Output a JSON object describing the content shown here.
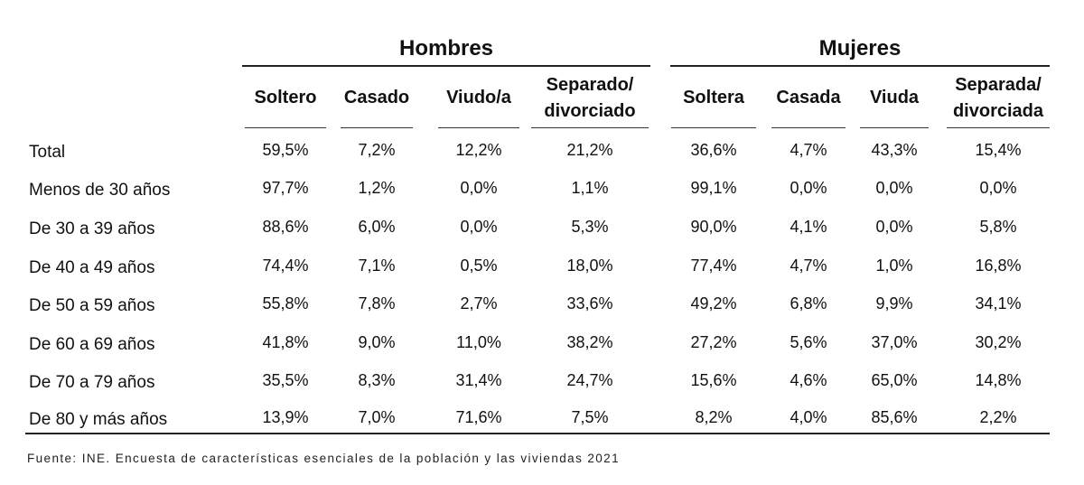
{
  "chart_data": {
    "type": "table",
    "groups": [
      {
        "label": "Hombres",
        "columns": [
          "Soltero",
          "Casado",
          "Viudo/a",
          "Separado/ divorciado"
        ]
      },
      {
        "label": "Mujeres",
        "columns": [
          "Soltera",
          "Casada",
          "Viuda",
          "Separada/ divorciada"
        ]
      }
    ],
    "rows": [
      {
        "label": "Total",
        "values": [
          "59,5%",
          "7,2%",
          "12,2%",
          "21,2%",
          "36,6%",
          "4,7%",
          "43,3%",
          "15,4%"
        ]
      },
      {
        "label": "Menos de 30 años",
        "values": [
          "97,7%",
          "1,2%",
          "0,0%",
          "1,1%",
          "99,1%",
          "0,0%",
          "0,0%",
          "0,0%"
        ]
      },
      {
        "label": "De 30 a 39 años",
        "values": [
          "88,6%",
          "6,0%",
          "0,0%",
          "5,3%",
          "90,0%",
          "4,1%",
          "0,0%",
          "5,8%"
        ]
      },
      {
        "label": "De 40 a 49 años",
        "values": [
          "74,4%",
          "7,1%",
          "0,5%",
          "18,0%",
          "77,4%",
          "4,7%",
          "1,0%",
          "16,8%"
        ]
      },
      {
        "label": "De 50 a 59 años",
        "values": [
          "55,8%",
          "7,8%",
          "2,7%",
          "33,6%",
          "49,2%",
          "6,8%",
          "9,9%",
          "34,1%"
        ]
      },
      {
        "label": "De 60 a 69 años",
        "values": [
          "41,8%",
          "9,0%",
          "11,0%",
          "38,2%",
          "27,2%",
          "5,6%",
          "37,0%",
          "30,2%"
        ]
      },
      {
        "label": "De 70 a 79 años",
        "values": [
          "35,5%",
          "8,3%",
          "31,4%",
          "24,7%",
          "15,6%",
          "4,6%",
          "65,0%",
          "14,8%"
        ]
      },
      {
        "label": "De 80 y más años",
        "values": [
          "13,9%",
          "7,0%",
          "71,6%",
          "7,5%",
          "8,2%",
          "4,0%",
          "85,6%",
          "2,2%"
        ]
      }
    ],
    "source": "Fuente: INE. Encuesta de características esenciales de la población y las viviendas 2021"
  }
}
